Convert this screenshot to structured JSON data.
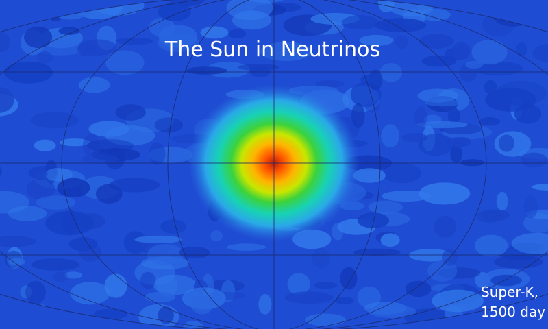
{
  "title": "The Sun in Neutrinos",
  "caption": {
    "line1": "Super-K,",
    "line2": "1500 day"
  }
}
